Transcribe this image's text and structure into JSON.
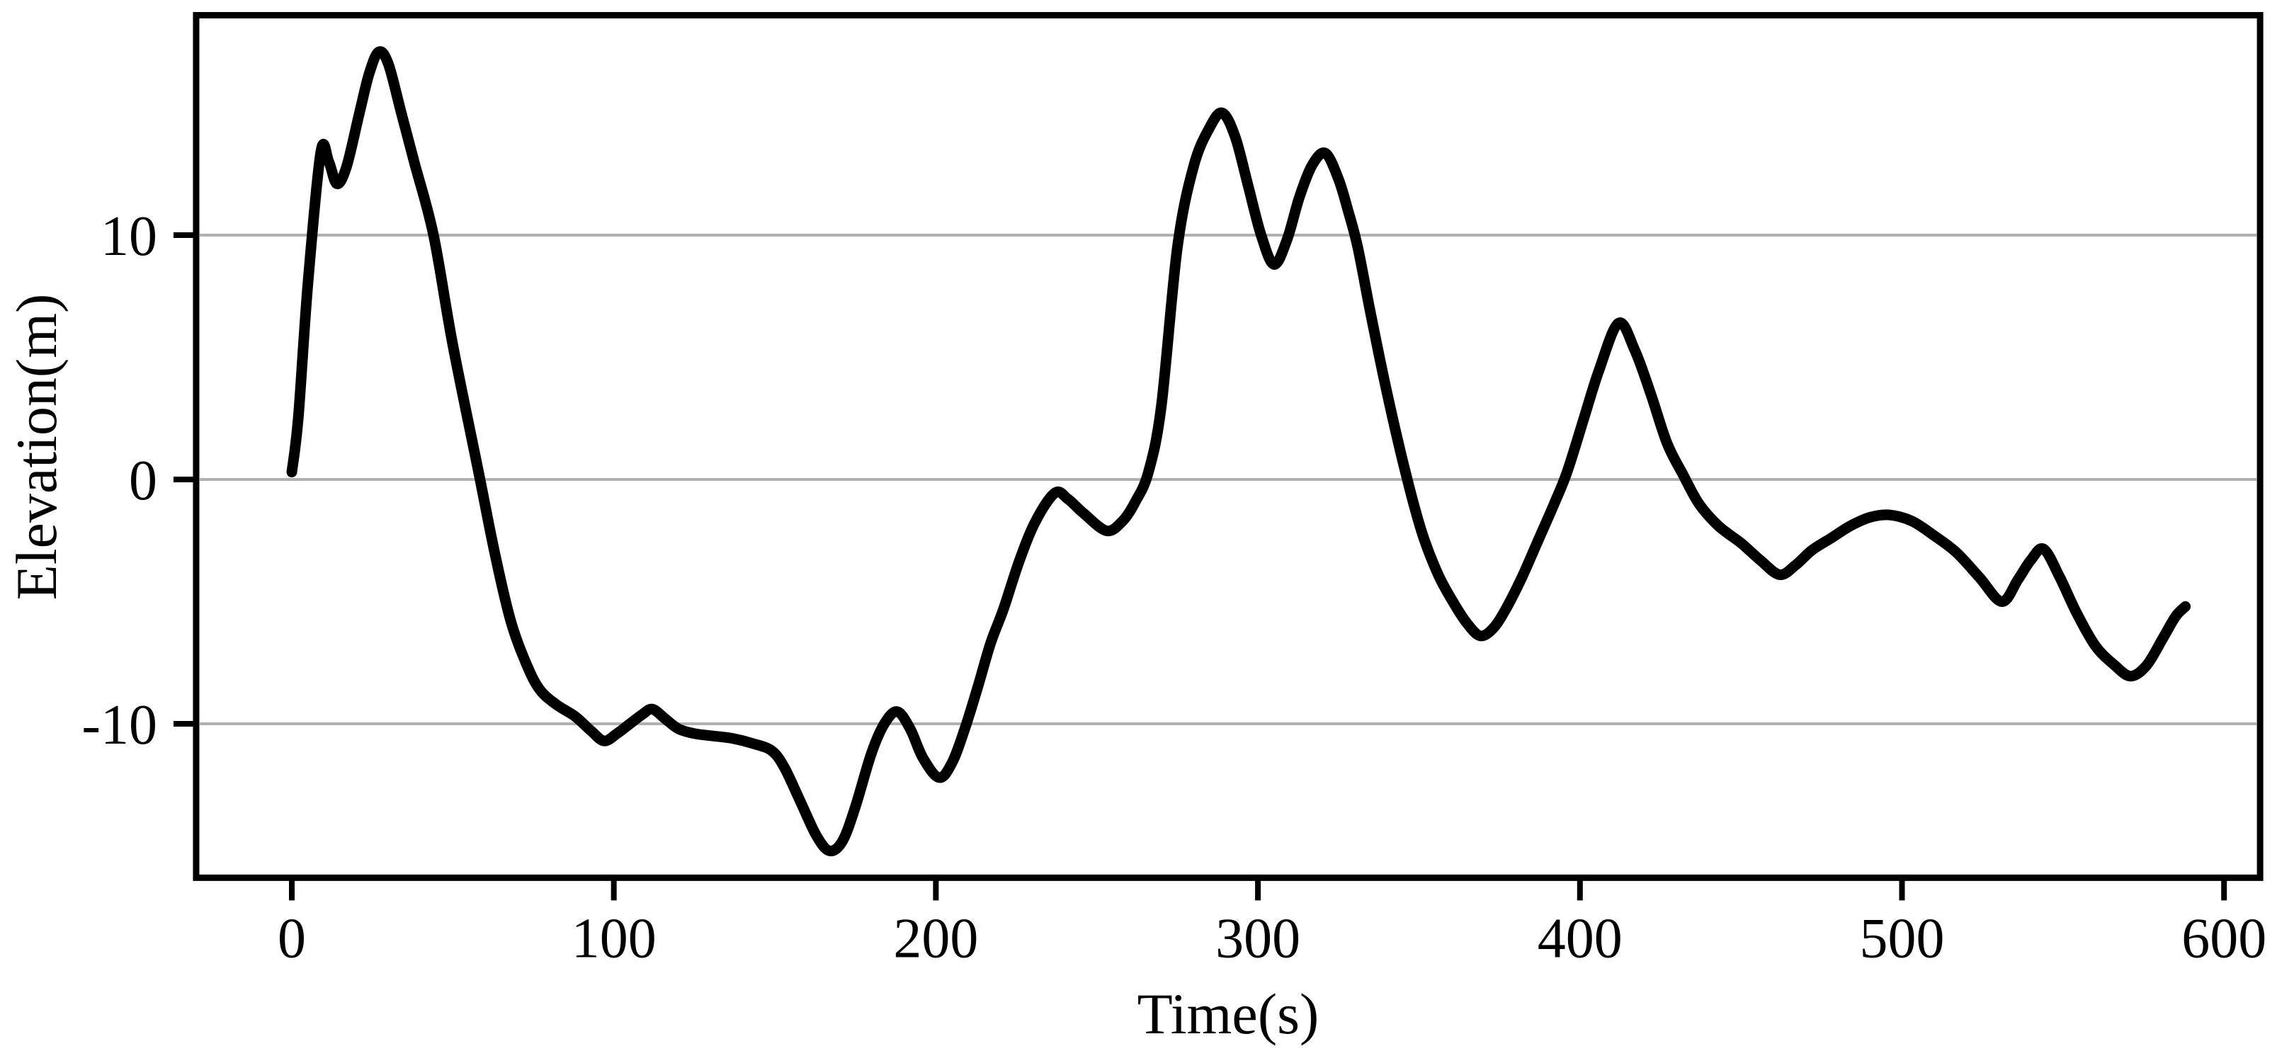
{
  "chart_data": {
    "type": "line",
    "title": "",
    "xlabel": "Time(s)",
    "ylabel": "Elevation(m)",
    "x_ticks": [
      0,
      100,
      200,
      300,
      400,
      500,
      600
    ],
    "y_ticks": [
      -10,
      0,
      10
    ],
    "xlim": [
      -29.7,
      611.2
    ],
    "ylim": [
      -16.3,
      19.0
    ],
    "grid": "horizontal-only",
    "legend": "none",
    "line_color": "#000000",
    "grid_color": "#b0b0b0",
    "axis_color": "#000000",
    "series": [
      {
        "name": "elevation",
        "points": [
          [
            0,
            0.3
          ],
          [
            2,
            2.5
          ],
          [
            5,
            8.0
          ],
          [
            9,
            13.4
          ],
          [
            11.5,
            13.0
          ],
          [
            14,
            12.1
          ],
          [
            17,
            12.8
          ],
          [
            21,
            15.0
          ],
          [
            24,
            16.6
          ],
          [
            27,
            17.5
          ],
          [
            30,
            17.0
          ],
          [
            34,
            15.0
          ],
          [
            38,
            13.0
          ],
          [
            44,
            10.0
          ],
          [
            50,
            5.5
          ],
          [
            58,
            0.3
          ],
          [
            63,
            -3.0
          ],
          [
            68,
            -5.8
          ],
          [
            73,
            -7.6
          ],
          [
            77,
            -8.6
          ],
          [
            82,
            -9.2
          ],
          [
            88,
            -9.7
          ],
          [
            93,
            -10.3
          ],
          [
            97,
            -10.7
          ],
          [
            101,
            -10.4
          ],
          [
            105,
            -10.0
          ],
          [
            109,
            -9.6
          ],
          [
            112,
            -9.4
          ],
          [
            116,
            -9.8
          ],
          [
            120,
            -10.2
          ],
          [
            125,
            -10.4
          ],
          [
            131,
            -10.5
          ],
          [
            137,
            -10.6
          ],
          [
            143,
            -10.8
          ],
          [
            149,
            -11.1
          ],
          [
            153,
            -11.8
          ],
          [
            158,
            -13.2
          ],
          [
            163,
            -14.6
          ],
          [
            167,
            -15.2
          ],
          [
            171,
            -14.8
          ],
          [
            175,
            -13.4
          ],
          [
            180,
            -11.2
          ],
          [
            184,
            -10.0
          ],
          [
            188,
            -9.5
          ],
          [
            192,
            -10.2
          ],
          [
            196,
            -11.4
          ],
          [
            201,
            -12.2
          ],
          [
            205,
            -11.6
          ],
          [
            209,
            -10.2
          ],
          [
            213,
            -8.5
          ],
          [
            217,
            -6.7
          ],
          [
            221,
            -5.3
          ],
          [
            226,
            -3.3
          ],
          [
            231,
            -1.7
          ],
          [
            237,
            -0.55
          ],
          [
            241,
            -0.8
          ],
          [
            246,
            -1.4
          ],
          [
            253,
            -2.1
          ],
          [
            258,
            -1.7
          ],
          [
            262,
            -0.9
          ],
          [
            266,
            0.3
          ],
          [
            270,
            3.0
          ],
          [
            275,
            9.5
          ],
          [
            280,
            12.8
          ],
          [
            285,
            14.4
          ],
          [
            289,
            15.0
          ],
          [
            293,
            14.0
          ],
          [
            297,
            12.0
          ],
          [
            301,
            10.0
          ],
          [
            305,
            8.8
          ],
          [
            309,
            9.8
          ],
          [
            313,
            11.6
          ],
          [
            317,
            12.9
          ],
          [
            321,
            13.35
          ],
          [
            325,
            12.3
          ],
          [
            328,
            11.0
          ],
          [
            331,
            9.5
          ],
          [
            335,
            6.8
          ],
          [
            340,
            3.6
          ],
          [
            346,
            0.2
          ],
          [
            351,
            -2.2
          ],
          [
            356,
            -3.9
          ],
          [
            361,
            -5.1
          ],
          [
            365,
            -5.9
          ],
          [
            369,
            -6.4
          ],
          [
            373,
            -6.1
          ],
          [
            377,
            -5.3
          ],
          [
            382,
            -4.0
          ],
          [
            387,
            -2.5
          ],
          [
            392,
            -1.0
          ],
          [
            396,
            0.3
          ],
          [
            401,
            2.4
          ],
          [
            406,
            4.5
          ],
          [
            412,
            6.4
          ],
          [
            417,
            5.3
          ],
          [
            422,
            3.5
          ],
          [
            427,
            1.5
          ],
          [
            432,
            0.2
          ],
          [
            437,
            -1.0
          ],
          [
            443,
            -1.9
          ],
          [
            450,
            -2.6
          ],
          [
            456,
            -3.3
          ],
          [
            462,
            -3.9
          ],
          [
            467,
            -3.5
          ],
          [
            472,
            -2.9
          ],
          [
            478,
            -2.4
          ],
          [
            484,
            -1.9
          ],
          [
            490,
            -1.55
          ],
          [
            496,
            -1.45
          ],
          [
            503,
            -1.7
          ],
          [
            510,
            -2.3
          ],
          [
            517,
            -3.0
          ],
          [
            524,
            -4.0
          ],
          [
            531,
            -5.0
          ],
          [
            536,
            -4.1
          ],
          [
            540,
            -3.3
          ],
          [
            544,
            -2.85
          ],
          [
            549,
            -4.0
          ],
          [
            554,
            -5.4
          ],
          [
            560,
            -6.8
          ],
          [
            566,
            -7.6
          ],
          [
            571,
            -8.05
          ],
          [
            576,
            -7.6
          ],
          [
            581,
            -6.5
          ],
          [
            585,
            -5.6
          ],
          [
            588,
            -5.2
          ]
        ]
      }
    ]
  }
}
